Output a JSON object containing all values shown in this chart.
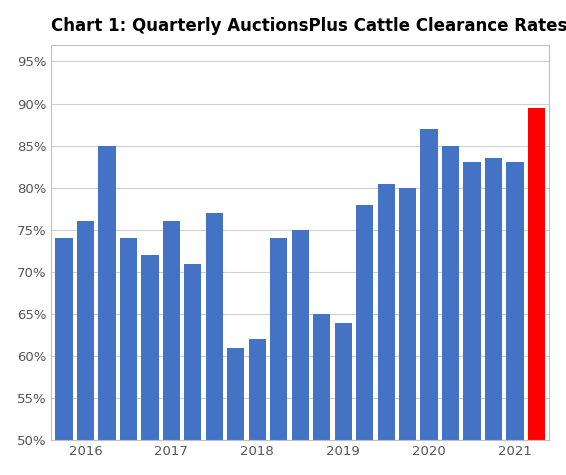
{
  "title": "Chart 1: Quarterly AuctionsPlus Cattle Clearance Rates",
  "values": [
    74,
    76,
    85,
    74,
    72,
    76,
    71,
    77,
    61,
    62,
    74,
    75,
    65,
    64,
    78,
    80.5,
    80,
    87,
    85,
    83,
    83.5,
    83,
    89.5
  ],
  "bar_colors": [
    "#4472C4",
    "#4472C4",
    "#4472C4",
    "#4472C4",
    "#4472C4",
    "#4472C4",
    "#4472C4",
    "#4472C4",
    "#4472C4",
    "#4472C4",
    "#4472C4",
    "#4472C4",
    "#4472C4",
    "#4472C4",
    "#4472C4",
    "#4472C4",
    "#4472C4",
    "#4472C4",
    "#4472C4",
    "#4472C4",
    "#4472C4",
    "#4472C4",
    "#FF0000"
  ],
  "year_labels": [
    "2016",
    "2017",
    "2018",
    "2019",
    "2020",
    "2021"
  ],
  "year_positions": [
    1,
    5,
    9,
    13,
    17,
    21
  ],
  "ylim": [
    50,
    97
  ],
  "yticks": [
    50,
    55,
    60,
    65,
    70,
    75,
    80,
    85,
    90,
    95
  ],
  "background_color": "#ffffff",
  "plot_area_color": "#ffffff",
  "grid_color": "#d0d0d0",
  "title_fontsize": 12,
  "tick_fontsize": 9.5,
  "bar_width": 0.8
}
